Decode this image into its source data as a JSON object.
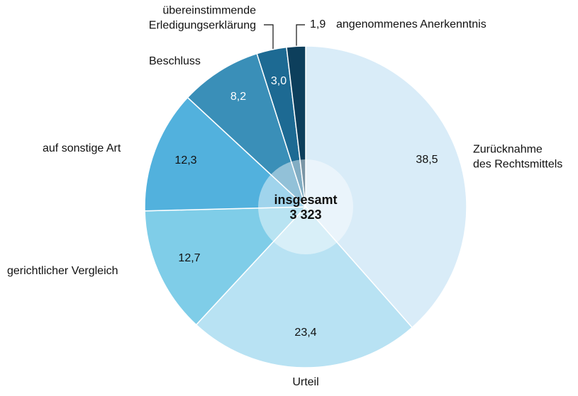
{
  "chart_data": {
    "type": "pie",
    "categories": [
      "Zurücknahme\ndes Rechtsmittels",
      "Urteil",
      "gerichtlicher Vergleich",
      "auf sonstige Art",
      "Beschluss",
      "übereinstimmende\nErledigungserklärung",
      "angenommenes Anerkenntnis"
    ],
    "values": [
      38.5,
      23.4,
      12.7,
      12.3,
      8.2,
      3.0,
      1.9
    ],
    "value_labels": [
      "38,5",
      "23,4",
      "12,7",
      "12,3",
      "8,2",
      "3,0",
      "1,9"
    ],
    "colors": [
      "#d9ecf8",
      "#b8e2f3",
      "#7fcde8",
      "#52b1dd",
      "#3a8fb8",
      "#1d6a93",
      "#0d3f5c"
    ],
    "center_title": "insgesamt",
    "total": {
      "value": 3323,
      "label": "3 323"
    }
  }
}
